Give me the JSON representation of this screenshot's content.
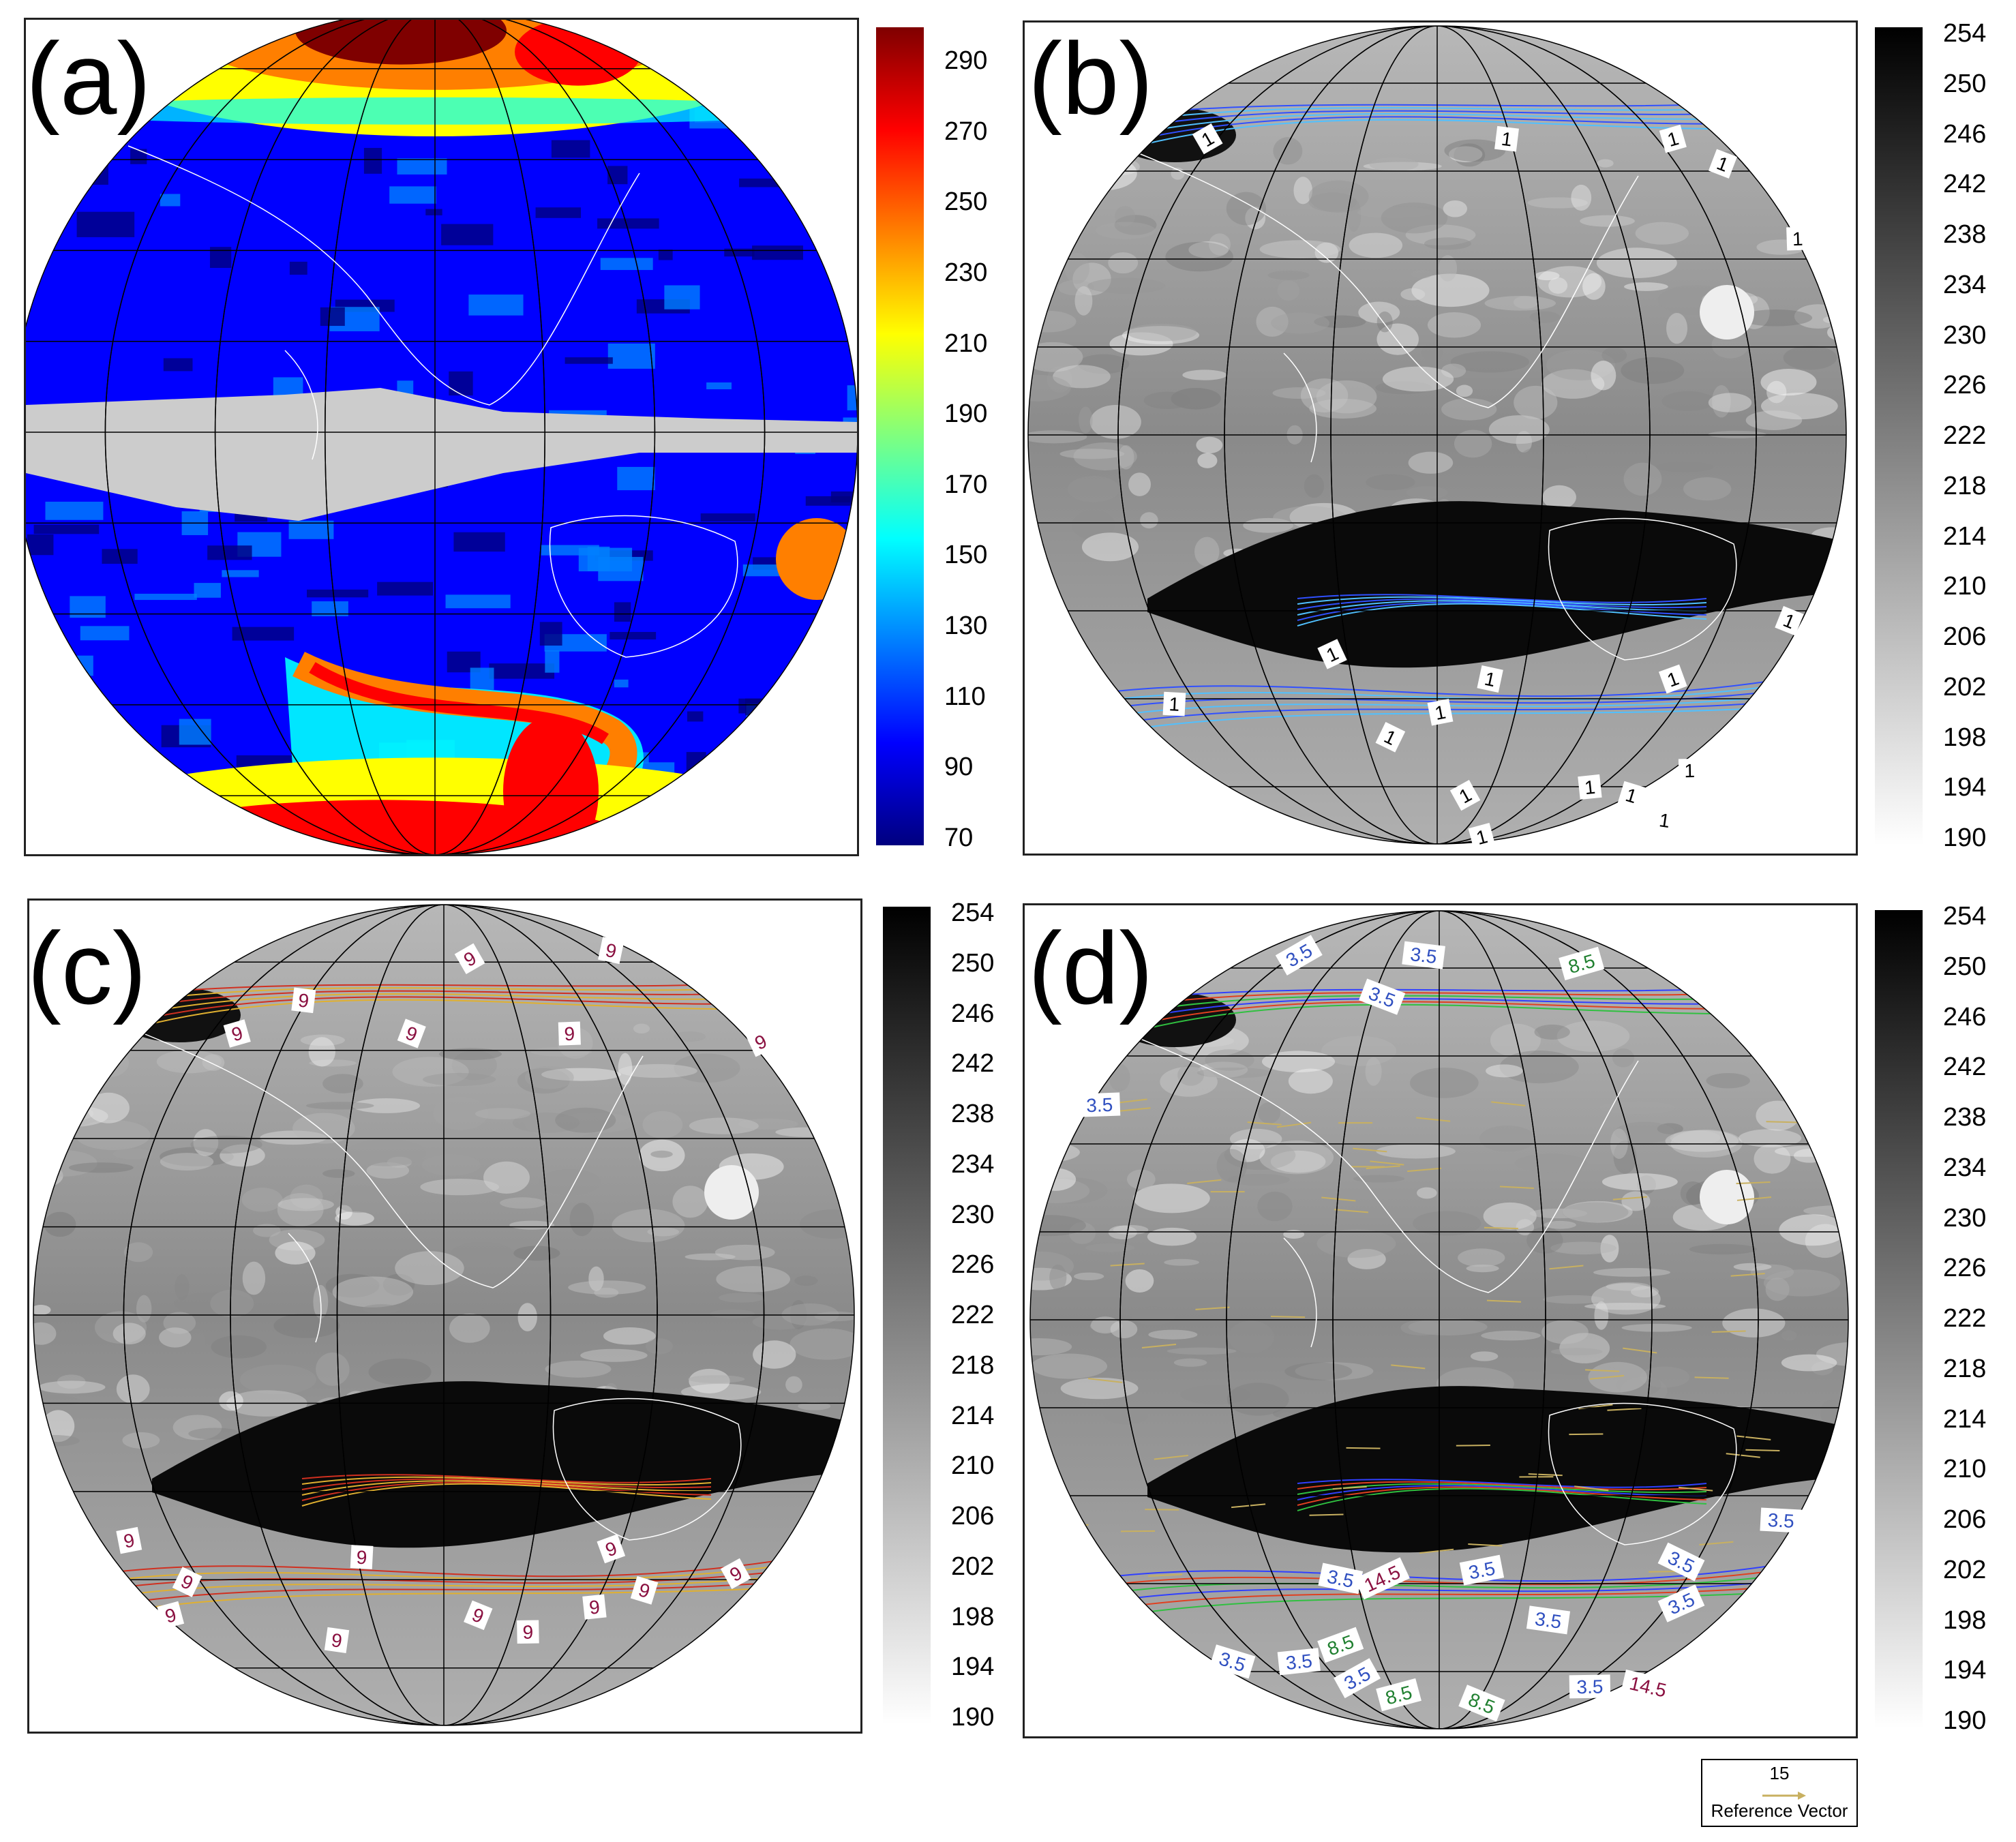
{
  "panels": [
    {
      "label": "(a)",
      "style": "color",
      "colorbar_ticks": [
        "290",
        "270",
        "250",
        "230",
        "210",
        "190",
        "170",
        "150",
        "130",
        "110",
        "90",
        "70"
      ],
      "contour_labels": []
    },
    {
      "label": "(b)",
      "style": "gray",
      "colorbar_ticks": [
        "254",
        "250",
        "246",
        "242",
        "238",
        "234",
        "230",
        "226",
        "222",
        "218",
        "214",
        "210",
        "206",
        "202",
        "198",
        "194",
        "190"
      ],
      "contour_labels": [
        "1",
        "1",
        "1",
        "1",
        "1",
        "1",
        "1",
        "1",
        "1",
        "1",
        "1",
        "1",
        "1",
        "1",
        "1",
        "1",
        "1",
        "1"
      ]
    },
    {
      "label": "(c)",
      "style": "gray",
      "colorbar_ticks": [
        "254",
        "250",
        "246",
        "242",
        "238",
        "234",
        "230",
        "226",
        "222",
        "218",
        "214",
        "210",
        "206",
        "202",
        "198",
        "194",
        "190"
      ],
      "contour_labels": [
        "9",
        "9",
        "9",
        "9",
        "9",
        "9",
        "9",
        "9",
        "9",
        "9",
        "9",
        "9",
        "9",
        "9",
        "9",
        "9",
        "9",
        "9"
      ]
    },
    {
      "label": "(d)",
      "style": "gray",
      "colorbar_ticks": [
        "254",
        "250",
        "246",
        "242",
        "238",
        "234",
        "230",
        "226",
        "222",
        "218",
        "214",
        "210",
        "206",
        "202",
        "198",
        "194",
        "190"
      ],
      "contour_labels": [
        "3.5",
        "3.5",
        "8.5",
        "3.5",
        "3.5",
        "14.5",
        "3.5",
        "3.5",
        "3.5",
        "3.5",
        "8.5",
        "3.5",
        "3.5",
        "3.5",
        "3.5",
        "8.5",
        "8.5",
        "3.5",
        "3.5",
        "14.5"
      ]
    }
  ],
  "reference_vector": {
    "value": "15",
    "label": "Reference Vector"
  },
  "colors": {
    "jet": [
      "#00007f",
      "#0000ff",
      "#007fff",
      "#00ffff",
      "#7fff7f",
      "#ffff00",
      "#ff7f00",
      "#ff0000",
      "#7f0000"
    ],
    "gray_dark": "#000000",
    "gray_light": "#ffffff",
    "equator_band": "#cccccc",
    "coast": "#ffffff",
    "grid": "#000000",
    "vector": "#c8b060"
  }
}
